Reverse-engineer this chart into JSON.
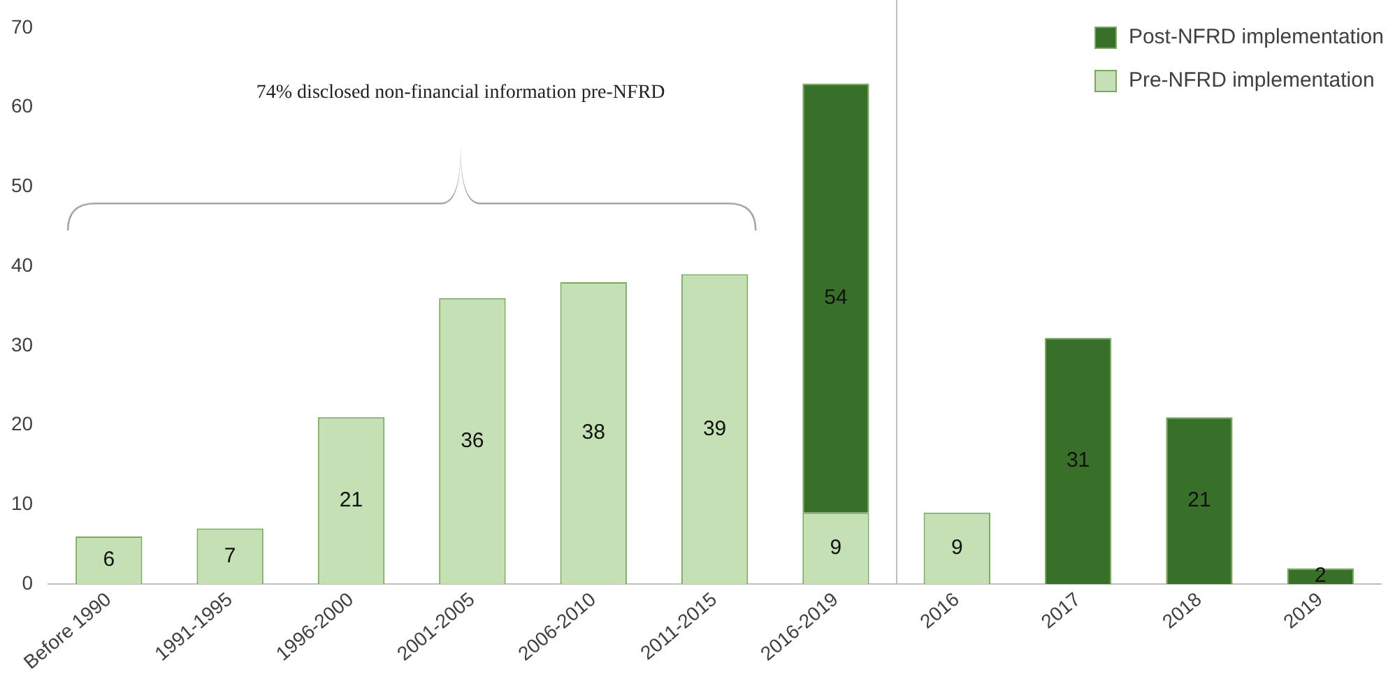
{
  "chart_data": {
    "type": "bar",
    "stacked": true,
    "categories": [
      "Before 1990",
      "1991-1995",
      "1996-2000",
      "2001-2005",
      "2006-2010",
      "2011-2015",
      "2016-2019",
      "2016",
      "2017",
      "2018",
      "2019"
    ],
    "series": [
      {
        "name": "Pre-NFRD implementation",
        "color": "#c5e0b4",
        "values": [
          6,
          7,
          21,
          36,
          38,
          39,
          9,
          9,
          null,
          null,
          null
        ]
      },
      {
        "name": "Post-NFRD implementation",
        "color": "#38702a",
        "values": [
          null,
          null,
          null,
          null,
          null,
          null,
          54,
          null,
          31,
          21,
          2
        ]
      }
    ],
    "ylim": [
      0,
      70
    ],
    "yticks": [
      0,
      10,
      20,
      30,
      40,
      50,
      60,
      70
    ],
    "grid": false,
    "legend": "top right",
    "data_labels": true,
    "annotations": [
      "74% disclosed non-financial information pre-NFRD"
    ]
  }
}
